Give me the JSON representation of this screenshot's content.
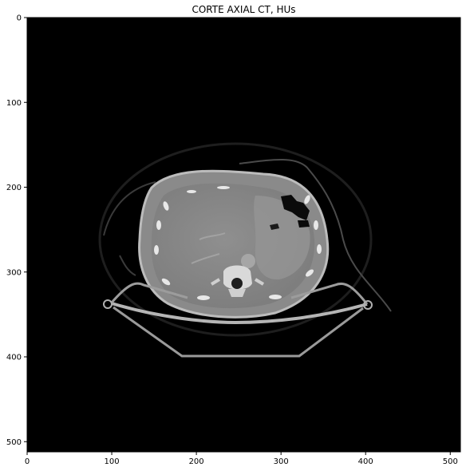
{
  "title": "CORTE AXIAL CT, HUs",
  "image_description_hidden": "",
  "image_kind": "axial CT slice, grayscale (bone window)",
  "xaxis": {
    "ticks": [
      "0",
      "100",
      "200",
      "300",
      "400",
      "500"
    ],
    "range": [
      0,
      512
    ]
  },
  "yaxis": {
    "ticks": [
      "0",
      "100",
      "200",
      "300",
      "400",
      "500"
    ],
    "range": [
      0,
      512
    ]
  },
  "colors": {
    "background": "#000000",
    "frame": "#000000"
  }
}
